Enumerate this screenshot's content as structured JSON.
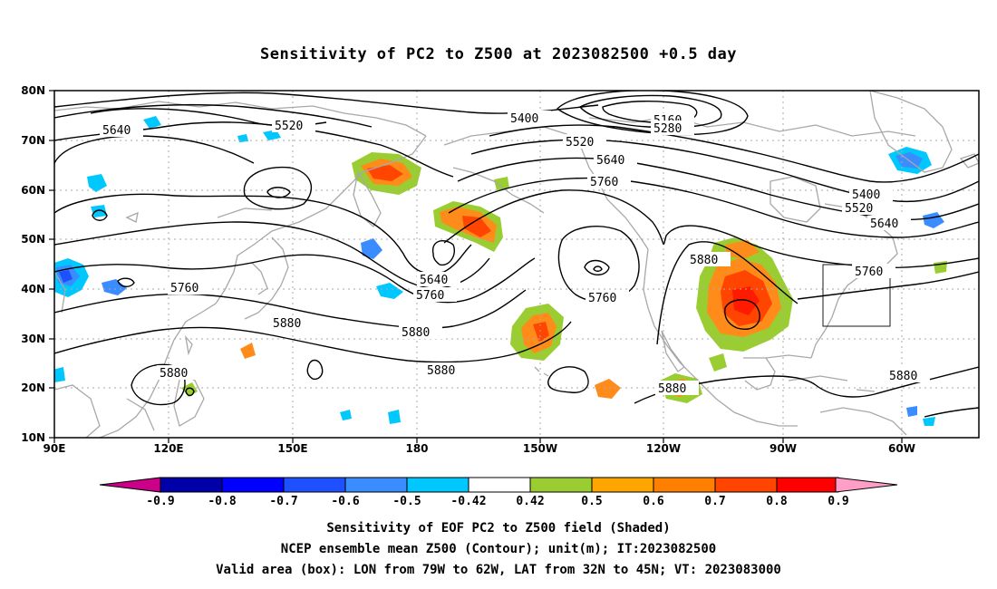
{
  "title": "Sensitivity of PC2 to Z500 at 2023082500 +0.5 day",
  "footer": {
    "line1": "Sensitivity of EOF PC2 to Z500 field (Shaded)",
    "line2": "NCEP ensemble mean Z500 (Contour); unit(m); IT:2023082500",
    "line3": "Valid area (box): LON from 79W to 62W, LAT from 32N to 45N; VT: 2023083000"
  },
  "map": {
    "lon_ticks": [
      "90E",
      "120E",
      "150E",
      "180",
      "150W",
      "120W",
      "90W",
      "60W"
    ],
    "lat_ticks": [
      "80N",
      "70N",
      "60N",
      "50N",
      "40N",
      "30N",
      "20N",
      "10N"
    ],
    "valid_box": {
      "lon_min": -79,
      "lon_max": -62,
      "lat_min": 32,
      "lat_max": 45
    },
    "contour_labels": [
      "5640",
      "5520",
      "5400",
      "5160",
      "5280",
      "5520",
      "5640",
      "5760",
      "5400",
      "5520",
      "5640",
      "5760",
      "5880",
      "5760",
      "5640",
      "5760",
      "5760",
      "5880",
      "5880",
      "5880",
      "5880",
      "5880",
      "5880"
    ]
  },
  "colorbar": {
    "labels": [
      "-0.9",
      "-0.8",
      "-0.7",
      "-0.6",
      "-0.5",
      "-0.42",
      "0.42",
      "0.5",
      "0.6",
      "0.7",
      "0.8",
      "0.9"
    ],
    "colors": [
      "#0000a8",
      "#0000ff",
      "#1e50ff",
      "#3a8cff",
      "#00c8ff",
      "#ffffff",
      "#9acd32",
      "#ffa500",
      "#ff7f00",
      "#ff4500",
      "#ff0000"
    ],
    "low_color": "#cc0088",
    "high_color": "#ff9fc8"
  },
  "colors": {
    "land": "#a8a8a8",
    "contour": "#000000",
    "grid": "#aaaaaa"
  }
}
